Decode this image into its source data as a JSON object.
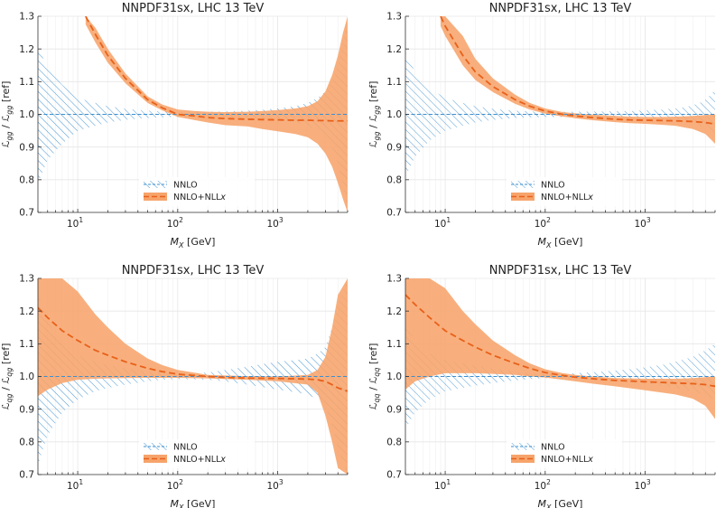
{
  "colors": {
    "nnlo": "#3a8fd1",
    "nll_fill": "#f7a46b",
    "nll_line": "#e8611a"
  },
  "legend": {
    "nnlo": "NNLO",
    "nll_prefix": "NNLO+NLL",
    "nll_suffix": "x"
  },
  "ylabel_units": "[ref]",
  "chart_data": [
    {
      "type": "line",
      "title": "NNPDF31sx, LHC 13 TeV",
      "xlabel_sym": "M",
      "xlabel_sub": "X",
      "xlabel_units": "[GeV]",
      "ylabel_num": "gg",
      "ylabel_den": "gg",
      "xscale": "log",
      "xlim": [
        4,
        5000
      ],
      "ylim": [
        0.7,
        1.3
      ],
      "yticks": [
        "0.7",
        "0.8",
        "0.9",
        "1.0",
        "1.1",
        "1.2",
        "1.3"
      ],
      "xticks": [
        {
          "base": "10",
          "exp": "1"
        },
        {
          "base": "10",
          "exp": "2"
        },
        {
          "base": "10",
          "exp": "3"
        }
      ],
      "legend_position": "bottom-center",
      "series": [
        {
          "name": "NNLO",
          "style": "hatched band + dashed central line",
          "x": [
            4,
            5,
            7,
            10,
            15,
            20,
            30,
            50,
            70,
            100,
            200,
            400,
            700,
            1000,
            1500,
            2000,
            2500,
            3000,
            3500,
            4000,
            4500,
            5000
          ],
          "central": [
            1,
            1,
            1,
            1,
            1,
            1,
            1,
            1,
            1,
            1,
            1,
            1,
            1,
            1,
            1,
            1,
            1,
            1,
            1,
            1,
            1,
            1
          ],
          "upper": [
            1.21,
            1.14,
            1.09,
            1.05,
            1.035,
            1.025,
            1.017,
            1.011,
            1.009,
            1.008,
            1.008,
            1.01,
            1.014,
            1.018,
            1.025,
            1.035,
            1.05,
            1.07,
            1.1,
            1.15,
            1.22,
            1.29
          ],
          "lower": [
            0.79,
            0.86,
            0.91,
            0.95,
            0.965,
            0.975,
            0.983,
            0.989,
            0.991,
            0.992,
            0.992,
            0.99,
            0.986,
            0.982,
            0.975,
            0.965,
            0.95,
            0.93,
            0.9,
            0.85,
            0.78,
            0.71
          ]
        },
        {
          "name": "NNLO+NLLx",
          "style": "filled band + dashed central line",
          "x": [
            12,
            15,
            20,
            30,
            50,
            70,
            100,
            150,
            200,
            300,
            500,
            700,
            1000,
            1500,
            2000,
            2500,
            3000,
            3500,
            4000,
            4500,
            5000
          ],
          "central": [
            1.3,
            1.245,
            1.18,
            1.11,
            1.045,
            1.02,
            1.0,
            0.995,
            0.99,
            0.987,
            0.985,
            0.984,
            0.983,
            0.982,
            0.982,
            0.981,
            0.981,
            0.98,
            0.98,
            0.98,
            0.98
          ],
          "upper": [
            1.3,
            1.265,
            1.2,
            1.125,
            1.055,
            1.03,
            1.015,
            1.01,
            1.008,
            1.007,
            1.008,
            1.01,
            1.013,
            1.018,
            1.025,
            1.04,
            1.07,
            1.12,
            1.18,
            1.25,
            1.3
          ],
          "lower": [
            1.275,
            1.22,
            1.158,
            1.095,
            1.035,
            1.012,
            0.992,
            0.982,
            0.975,
            0.967,
            0.963,
            0.955,
            0.948,
            0.94,
            0.93,
            0.91,
            0.88,
            0.84,
            0.79,
            0.74,
            0.7
          ]
        }
      ]
    },
    {
      "type": "line",
      "title": "NNPDF31sx, LHC 13 TeV",
      "xlabel_sym": "M",
      "xlabel_sub": "X",
      "xlabel_units": "[GeV]",
      "ylabel_num": "gg",
      "ylabel_den": "gg",
      "xscale": "log",
      "xlim": [
        4,
        5000
      ],
      "ylim": [
        0.7,
        1.3
      ],
      "yticks": [
        "0.7",
        "0.8",
        "0.9",
        "1.0",
        "1.1",
        "1.2",
        "1.3"
      ],
      "xticks": [
        {
          "base": "10",
          "exp": "1"
        },
        {
          "base": "10",
          "exp": "2"
        },
        {
          "base": "10",
          "exp": "3"
        }
      ],
      "legend_position": "bottom-center",
      "series": [
        {
          "name": "NNLO",
          "style": "hatched band + dashed central line",
          "x": [
            4,
            5,
            7,
            10,
            15,
            20,
            30,
            50,
            70,
            100,
            200,
            400,
            700,
            1000,
            1500,
            2000,
            2500,
            3000,
            3500,
            4000,
            4500,
            5000
          ],
          "central": [
            1,
            1,
            1,
            1,
            1,
            1,
            1,
            1,
            1,
            1,
            1,
            1,
            1,
            1,
            1,
            1,
            1,
            1,
            1,
            1,
            1,
            1
          ],
          "upper": [
            1.19,
            1.13,
            1.08,
            1.05,
            1.035,
            1.025,
            1.017,
            1.011,
            1.009,
            1.008,
            1.008,
            1.009,
            1.01,
            1.012,
            1.015,
            1.018,
            1.022,
            1.028,
            1.035,
            1.045,
            1.06,
            1.075
          ],
          "lower": [
            0.81,
            0.87,
            0.92,
            0.95,
            0.965,
            0.975,
            0.983,
            0.989,
            0.991,
            0.992,
            0.992,
            0.991,
            0.99,
            0.988,
            0.985,
            0.982,
            0.978,
            0.972,
            0.965,
            0.955,
            0.94,
            0.925
          ]
        },
        {
          "name": "NNLO+NLLx",
          "style": "filled band + dashed central line",
          "x": [
            9,
            10,
            15,
            20,
            30,
            50,
            70,
            100,
            150,
            200,
            300,
            500,
            700,
            1000,
            1500,
            2000,
            3000,
            4000,
            5000
          ],
          "central": [
            1.3,
            1.27,
            1.18,
            1.13,
            1.085,
            1.045,
            1.025,
            1.01,
            1.0,
            0.995,
            0.99,
            0.985,
            0.983,
            0.982,
            0.981,
            0.98,
            0.978,
            0.975,
            0.97
          ],
          "upper": [
            1.3,
            1.3,
            1.24,
            1.17,
            1.11,
            1.06,
            1.035,
            1.018,
            1.007,
            1.003,
            0.999,
            0.995,
            0.993,
            0.992,
            0.992,
            0.993,
            0.995,
            0.998,
            1.0
          ],
          "lower": [
            1.27,
            1.24,
            1.15,
            1.105,
            1.068,
            1.032,
            1.015,
            1.002,
            0.993,
            0.988,
            0.982,
            0.976,
            0.973,
            0.971,
            0.968,
            0.965,
            0.955,
            0.94,
            0.91
          ]
        }
      ]
    },
    {
      "type": "line",
      "title": "NNPDF31sx, LHC 13 TeV",
      "xlabel_sym": "M",
      "xlabel_sub": "X",
      "xlabel_units": "[GeV]",
      "ylabel_num": "qg",
      "ylabel_den": "qg",
      "xscale": "log",
      "xlim": [
        4,
        5000
      ],
      "ylim": [
        0.7,
        1.3
      ],
      "yticks": [
        "0.7",
        "0.8",
        "0.9",
        "1.0",
        "1.1",
        "1.2",
        "1.3"
      ],
      "xticks": [
        {
          "base": "10",
          "exp": "1"
        },
        {
          "base": "10",
          "exp": "2"
        },
        {
          "base": "10",
          "exp": "3"
        }
      ],
      "legend_position": "bottom-center",
      "series": [
        {
          "name": "NNLO",
          "style": "hatched band + dashed central line",
          "x": [
            4,
            5,
            7,
            10,
            15,
            20,
            30,
            50,
            70,
            100,
            200,
            300,
            500,
            700,
            1000,
            1500,
            2000,
            2500,
            3000,
            3500,
            4000,
            5000
          ],
          "central": [
            1,
            1,
            1,
            1,
            1,
            1,
            1,
            1,
            1,
            1,
            1,
            1,
            1,
            1,
            1,
            1,
            1,
            1,
            1,
            1,
            1,
            1
          ],
          "upper": [
            1.25,
            1.17,
            1.1,
            1.065,
            1.045,
            1.035,
            1.025,
            1.015,
            1.01,
            1.008,
            1.012,
            1.02,
            1.03,
            1.038,
            1.045,
            1.05,
            1.055,
            1.07,
            1.09,
            1.15,
            1.22,
            1.3
          ],
          "lower": [
            0.73,
            0.82,
            0.89,
            0.93,
            0.955,
            0.965,
            0.975,
            0.985,
            0.99,
            0.992,
            0.99,
            0.985,
            0.975,
            0.968,
            0.96,
            0.952,
            0.945,
            0.93,
            0.91,
            0.85,
            0.78,
            0.7
          ]
        },
        {
          "name": "NNLO+NLLx",
          "style": "filled band + dashed central line",
          "x": [
            4,
            5,
            7,
            10,
            15,
            20,
            30,
            50,
            70,
            100,
            200,
            300,
            500,
            1000,
            2000,
            2500,
            3000,
            3500,
            4000,
            5000
          ],
          "central": [
            1.21,
            1.18,
            1.14,
            1.11,
            1.08,
            1.065,
            1.045,
            1.025,
            1.015,
            1.007,
            1.0,
            0.997,
            0.995,
            0.994,
            0.992,
            0.99,
            0.985,
            0.975,
            0.965,
            0.955
          ],
          "upper": [
            1.3,
            1.3,
            1.3,
            1.26,
            1.19,
            1.15,
            1.1,
            1.055,
            1.035,
            1.02,
            1.005,
            1.003,
            1.001,
            1.0,
            1.005,
            1.02,
            1.06,
            1.15,
            1.25,
            1.3
          ],
          "lower": [
            0.94,
            0.96,
            0.98,
            0.99,
            0.993,
            0.994,
            0.995,
            0.996,
            0.996,
            0.996,
            0.994,
            0.992,
            0.99,
            0.985,
            0.975,
            0.95,
            0.88,
            0.8,
            0.72,
            0.7
          ]
        }
      ]
    },
    {
      "type": "line",
      "title": "NNPDF31sx, LHC 13 TeV",
      "xlabel_sym": "M",
      "xlabel_sub": "X",
      "xlabel_units": "[GeV]",
      "ylabel_num": "qq",
      "ylabel_den": "qq",
      "xscale": "log",
      "xlim": [
        4,
        5000
      ],
      "ylim": [
        0.7,
        1.3
      ],
      "yticks": [
        "0.7",
        "0.8",
        "0.9",
        "1.0",
        "1.1",
        "1.2",
        "1.3"
      ],
      "xticks": [
        {
          "base": "10",
          "exp": "1"
        },
        {
          "base": "10",
          "exp": "2"
        },
        {
          "base": "10",
          "exp": "3"
        }
      ],
      "legend_position": "bottom-center",
      "series": [
        {
          "name": "NNLO",
          "style": "hatched band + dashed central line",
          "x": [
            4,
            5,
            7,
            10,
            15,
            20,
            30,
            50,
            70,
            100,
            150,
            200,
            300,
            500,
            700,
            1000,
            1500,
            2000,
            3000,
            4000,
            5000
          ],
          "central": [
            1,
            1,
            1,
            1,
            1,
            1,
            1,
            1,
            1,
            1,
            1,
            1,
            1,
            1,
            1,
            1,
            1,
            1,
            1,
            1,
            1
          ],
          "upper": [
            1.16,
            1.11,
            1.07,
            1.05,
            1.04,
            1.033,
            1.025,
            1.015,
            1.01,
            1.007,
            1.008,
            1.01,
            1.013,
            1.018,
            1.022,
            1.028,
            1.036,
            1.045,
            1.06,
            1.08,
            1.1
          ],
          "lower": [
            0.84,
            0.89,
            0.93,
            0.955,
            0.965,
            0.972,
            0.98,
            0.988,
            0.992,
            0.995,
            0.995,
            0.994,
            0.99,
            0.985,
            0.982,
            0.978,
            0.972,
            0.965,
            0.955,
            0.942,
            0.93
          ]
        },
        {
          "name": "NNLO+NLLx",
          "style": "filled band + dashed central line",
          "x": [
            4,
            5,
            7,
            10,
            15,
            20,
            30,
            50,
            70,
            100,
            150,
            200,
            300,
            500,
            1000,
            2000,
            3000,
            4000,
            5000
          ],
          "central": [
            1.25,
            1.22,
            1.18,
            1.14,
            1.11,
            1.09,
            1.065,
            1.04,
            1.025,
            1.012,
            1.003,
            0.998,
            0.993,
            0.988,
            0.984,
            0.98,
            0.978,
            0.975,
            0.97
          ],
          "upper": [
            1.3,
            1.3,
            1.3,
            1.27,
            1.2,
            1.16,
            1.11,
            1.065,
            1.04,
            1.022,
            1.01,
            1.005,
            1.0,
            0.995,
            0.993,
            0.993,
            0.995,
            0.998,
            1.0
          ],
          "lower": [
            0.96,
            0.985,
            1.0,
            1.01,
            1.01,
            1.01,
            1.008,
            1.005,
            1.0,
            0.997,
            0.99,
            0.985,
            0.978,
            0.97,
            0.958,
            0.945,
            0.932,
            0.91,
            0.87
          ]
        }
      ]
    }
  ]
}
